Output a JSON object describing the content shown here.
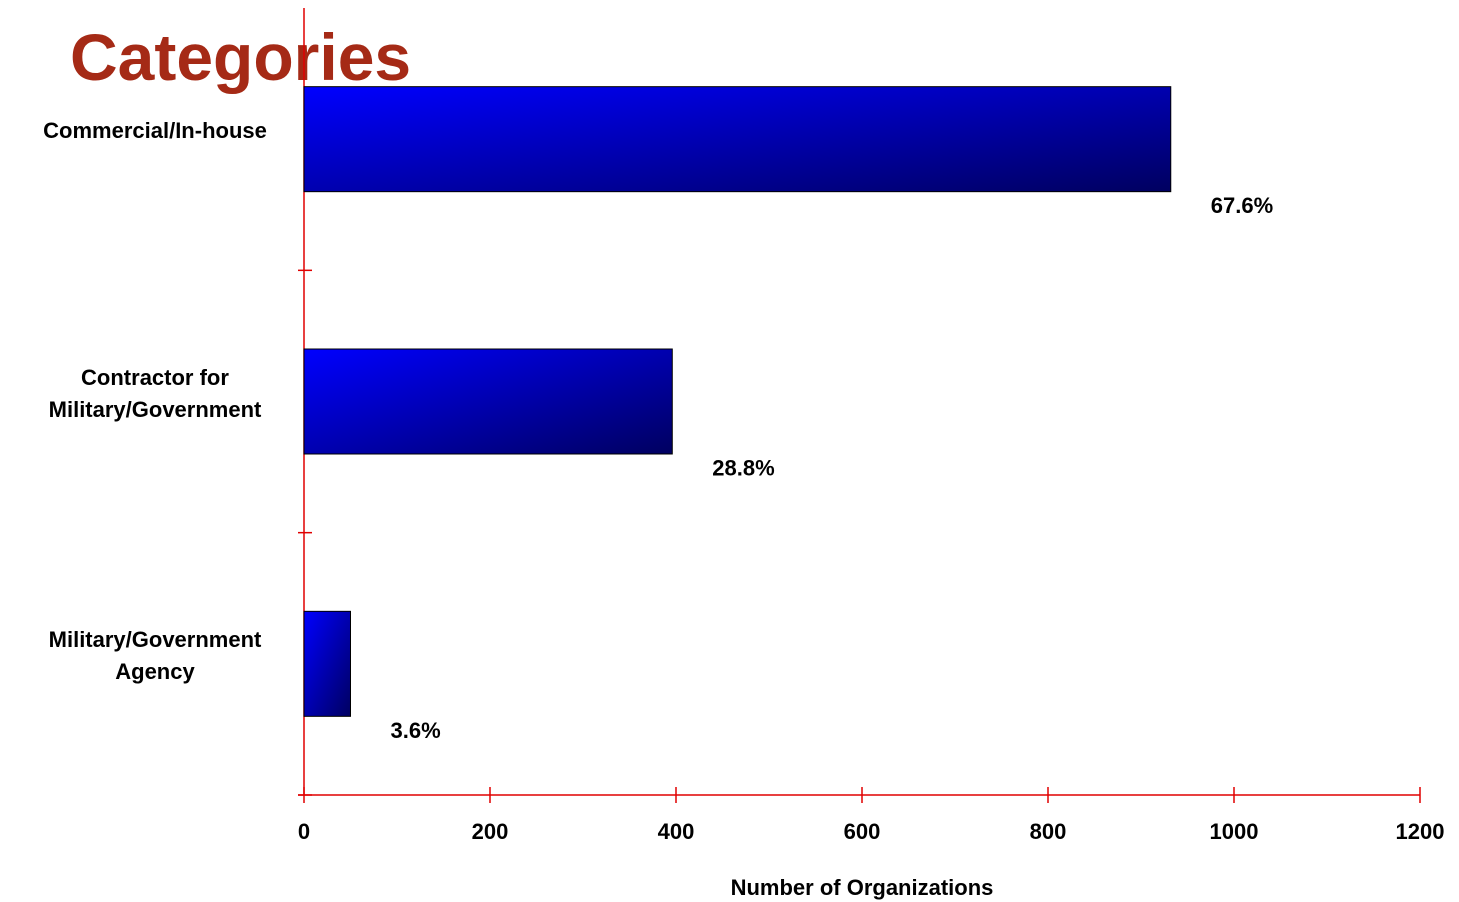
{
  "chart_data": {
    "type": "bar",
    "orientation": "horizontal",
    "title": "Categories",
    "categories": [
      "Commercial/In-house",
      "Contractor for Military/Government",
      "Military/Government Agency"
    ],
    "values": [
      932,
      396,
      50
    ],
    "percent_labels": [
      "67.6%",
      "28.8%",
      "3.6%"
    ],
    "color": "#0000ff",
    "axis_color": "#e00000",
    "title_color": "#a52a16",
    "xlabel": "Number of Organizations",
    "xlim": [
      0,
      1200
    ],
    "xticks": [
      0,
      200,
      400,
      600,
      800,
      1000,
      1200
    ],
    "grid": false
  }
}
